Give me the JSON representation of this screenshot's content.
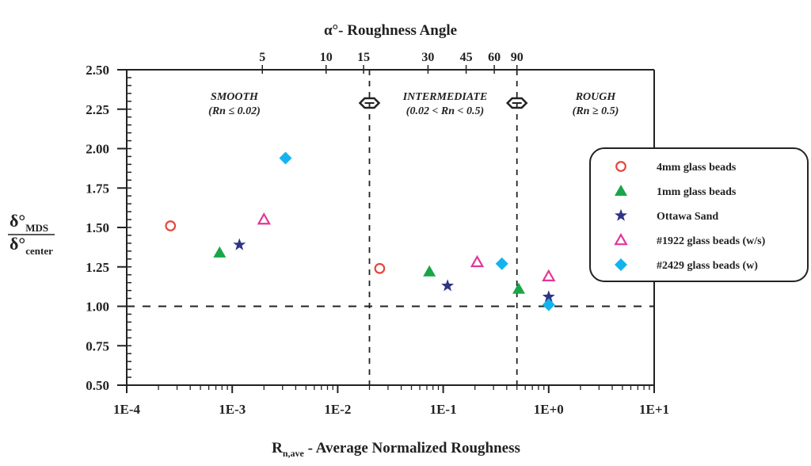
{
  "chart_data": {
    "type": "scatter",
    "top_axis_title": "α°- Roughness Angle",
    "top_tick_labels": [
      {
        "label": "5",
        "rn": 0.00193
      },
      {
        "label": "10",
        "rn": 0.00776
      },
      {
        "label": "15",
        "rn": 0.0176
      },
      {
        "label": "30",
        "rn": 0.0718
      },
      {
        "label": "45",
        "rn": 0.165
      },
      {
        "label": "60",
        "rn": 0.305
      },
      {
        "label": "90",
        "rn": 0.5
      }
    ],
    "xlabel_main": "R",
    "xlabel_sub": "n,ave",
    "xlabel_rest": " - Average Normalized Roughness",
    "ylabel_num": "δ°",
    "ylabel_num_sub": "MDS",
    "ylabel_den": "δ°",
    "ylabel_den_sub": "center",
    "xscale": "log",
    "xlim": [
      0.0001,
      10
    ],
    "ylim": [
      0.5,
      2.5
    ],
    "x_tick_labels": [
      "1E-4",
      "1E-3",
      "1E-2",
      "1E-1",
      "1E+0",
      "1E+1"
    ],
    "y_tick_labels": [
      "0.50",
      "0.75",
      "1.00",
      "1.25",
      "1.50",
      "1.75",
      "2.00",
      "2.25",
      "2.50"
    ],
    "y_ticks": [
      0.5,
      0.75,
      1.0,
      1.25,
      1.5,
      1.75,
      2.0,
      2.25,
      2.5
    ],
    "reference_line_y": 1.0,
    "boundaries": [
      0.02,
      0.5
    ],
    "regions": [
      {
        "name": "SMOOTH",
        "range": "(Rn ≤ 0.02)"
      },
      {
        "name": "INTERMEDIATE",
        "range": "(0.02 < Rn < 0.5)"
      },
      {
        "name": "ROUGH",
        "range": "(Rn ≥ 0.5)"
      }
    ],
    "legend_position": "right",
    "series": [
      {
        "name": "4mm glass beads",
        "marker": "circle-open",
        "color": "#e8453c",
        "points": [
          [
            0.00026,
            1.51
          ],
          [
            0.025,
            1.24
          ]
        ]
      },
      {
        "name": "1mm glass beads",
        "marker": "triangle-filled",
        "color": "#1aa548",
        "points": [
          [
            0.00076,
            1.34
          ],
          [
            0.074,
            1.22
          ],
          [
            0.52,
            1.11
          ]
        ]
      },
      {
        "name": "Ottawa Sand",
        "marker": "star",
        "color": "#2e3585",
        "points": [
          [
            0.00117,
            1.39
          ],
          [
            0.11,
            1.13
          ],
          [
            1.0,
            1.06
          ]
        ]
      },
      {
        "name": "#1922 glass beads (w/s)",
        "marker": "triangle-open",
        "color": "#e2369a",
        "points": [
          [
            0.002,
            1.55
          ],
          [
            0.21,
            1.28
          ],
          [
            1.0,
            1.19
          ]
        ]
      },
      {
        "name": "#2429 glass beads (w)",
        "marker": "diamond",
        "color": "#13b4ee",
        "points": [
          [
            0.0032,
            1.94
          ],
          [
            0.36,
            1.27
          ],
          [
            1.0,
            1.01
          ]
        ]
      }
    ]
  }
}
